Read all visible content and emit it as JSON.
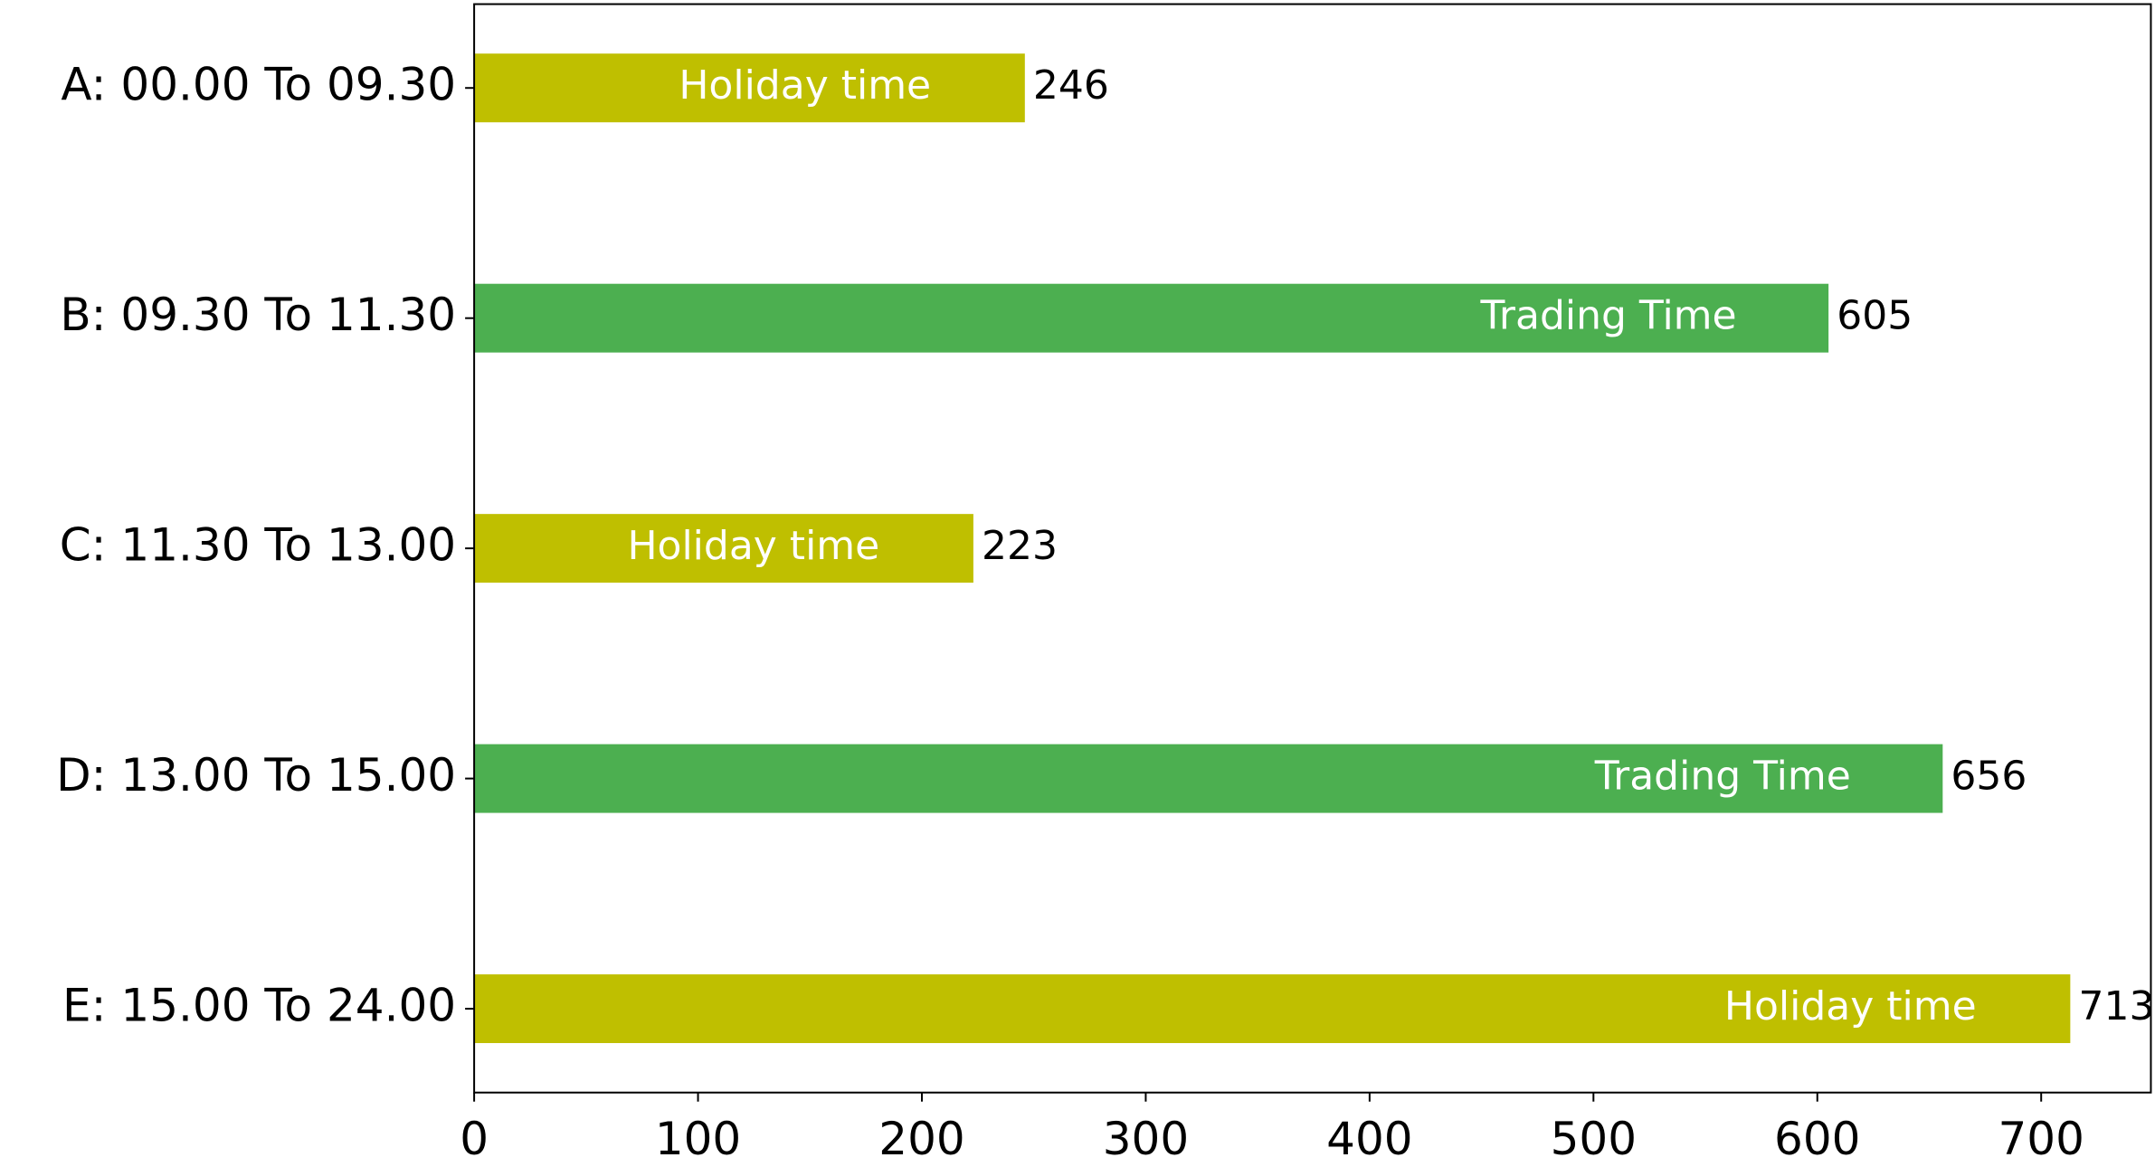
{
  "chart_data": {
    "type": "barh",
    "categories": [
      "A: 00.00 To 09.30",
      "B: 09.30 To 11.30",
      "C: 11.30 To 13.00",
      "D: 13.00 To 15.00",
      "E: 15.00 To 24.00"
    ],
    "values": [
      246,
      605,
      223,
      656,
      713
    ],
    "bar_labels": [
      "Holiday time",
      "Trading Time",
      "Holiday time",
      "Trading Time",
      "Holiday time"
    ],
    "colors": [
      "#bfbf00",
      "#4caf50",
      "#bfbf00",
      "#4caf50",
      "#bfbf00"
    ],
    "xlim": [
      0,
      749
    ],
    "xticks": [
      0,
      100,
      200,
      300,
      400,
      500,
      600,
      700
    ]
  }
}
